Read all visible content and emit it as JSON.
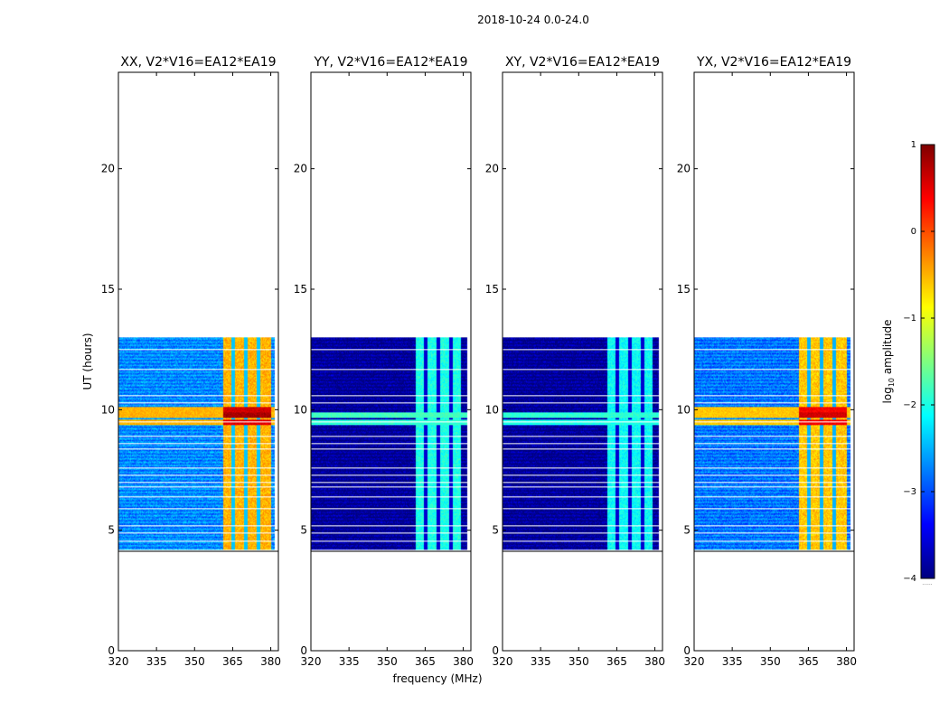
{
  "figure": {
    "suptitle": "2018-10-24 0.0-24.0",
    "xlabel": "frequency (MHz)",
    "ylabel": "UT (hours)"
  },
  "colorbar": {
    "label_prefix": "log",
    "label_sub": "10",
    "label_suffix": " amplitude",
    "range": [
      -4,
      1
    ],
    "ticks": [
      1,
      0,
      -1,
      -2,
      -3,
      -4
    ],
    "tick_labels": [
      "1",
      "0",
      "−1",
      "−2",
      "−3",
      "−4"
    ],
    "colormap": "jet",
    "stops": [
      "#00007f",
      "#0000ff",
      "#007fff",
      "#00ffff",
      "#7fff7f",
      "#ffff00",
      "#ff7f00",
      "#ff0000",
      "#7f0000"
    ],
    "footer": "......"
  },
  "chart_data": {
    "type": "heatmap",
    "shared_axes": {
      "x_range": [
        320,
        383
      ],
      "x_ticks": [
        320,
        335,
        350,
        365,
        380
      ],
      "y_range": [
        0,
        24
      ],
      "y_ticks": [
        0,
        5,
        10,
        15,
        20
      ],
      "data_time_range": [
        4.2,
        13.0
      ],
      "row_gaps_hours": [
        4.55,
        4.9,
        5.2,
        5.9,
        6.4,
        6.8,
        7.0,
        7.3,
        7.6,
        8.4,
        8.6,
        8.9,
        9.5,
        10.3,
        10.6,
        11.7,
        12.5
      ]
    },
    "panels": [
      {
        "title": "XX, V2*V16=EA12*EA19",
        "background_level": -2.7,
        "rfi_band_mhz": [
          361,
          380
        ],
        "rfi_level": -0.5,
        "strong_rows": [
          {
            "t": 10.0,
            "level": 0.6
          },
          {
            "t": 9.8,
            "level": 0.8
          },
          {
            "t": 9.5,
            "level": 0.5
          }
        ],
        "channel_gaps_mhz": [
          365,
          370,
          375
        ]
      },
      {
        "title": "YY, V2*V16=EA12*EA19",
        "background_level": -3.9,
        "rfi_band_mhz": [
          361,
          379
        ],
        "rfi_level": -2.0,
        "strong_rows": [
          {
            "t": 9.8,
            "level": -1.8
          },
          {
            "t": 9.5,
            "level": -1.9
          }
        ],
        "channel_gaps_mhz": [
          365,
          370,
          375
        ]
      },
      {
        "title": "XY, V2*V16=EA12*EA19",
        "background_level": -3.9,
        "rfi_band_mhz": [
          361,
          379
        ],
        "rfi_level": -2.1,
        "strong_rows": [
          {
            "t": 9.8,
            "level": -1.9
          },
          {
            "t": 9.5,
            "level": -2.0
          }
        ],
        "channel_gaps_mhz": [
          365,
          370,
          375
        ]
      },
      {
        "title": "YX, V2*V16=EA12*EA19",
        "background_level": -2.8,
        "rfi_band_mhz": [
          361,
          380
        ],
        "rfi_level": -0.6,
        "strong_rows": [
          {
            "t": 10.0,
            "level": 0.4
          },
          {
            "t": 9.8,
            "level": 0.6
          },
          {
            "t": 9.5,
            "level": 0.4
          }
        ],
        "channel_gaps_mhz": [
          365,
          370,
          375
        ]
      }
    ]
  }
}
